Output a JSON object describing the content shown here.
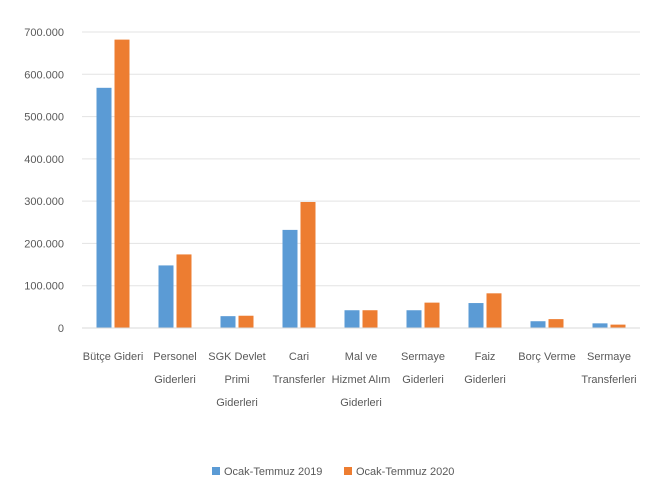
{
  "chart_data": {
    "type": "bar",
    "categories": [
      [
        "Bütçe Gideri"
      ],
      [
        "Personel",
        "Giderleri"
      ],
      [
        "SGK Devlet",
        "Primi",
        "Giderleri"
      ],
      [
        "Cari",
        "Transferler"
      ],
      [
        "Mal ve",
        "Hizmet Alım",
        "Giderleri"
      ],
      [
        "Sermaye",
        "Giderleri"
      ],
      [
        "Faiz",
        "Giderleri"
      ],
      [
        "Borç Verme"
      ],
      [
        "Sermaye",
        "Transferleri"
      ]
    ],
    "series": [
      {
        "name": "Ocak-Temmuz 2019",
        "color": "#5B9BD5",
        "values": [
          568000,
          148000,
          28000,
          232000,
          42000,
          42000,
          59000,
          16000,
          11000
        ]
      },
      {
        "name": "Ocak-Temmuz 2020",
        "color": "#ED7D31",
        "values": [
          682000,
          174000,
          29000,
          298000,
          42000,
          60000,
          82000,
          21000,
          8000
        ]
      }
    ],
    "yticks": [
      "0",
      "100.000",
      "200.000",
      "300.000",
      "400.000",
      "500.000",
      "600.000",
      "700.000"
    ],
    "ylim": [
      0,
      700000
    ],
    "grid": true,
    "legend_position": "bottom"
  }
}
